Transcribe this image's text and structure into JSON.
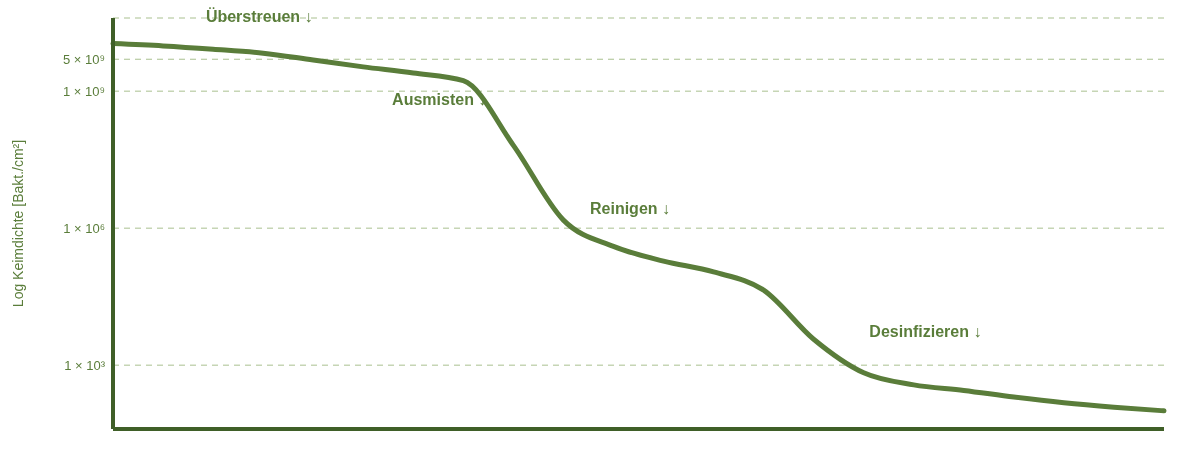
{
  "chart_data": {
    "type": "line",
    "ylabel": "Log Keimdichte [Bakt./cm²]",
    "categories": [
      null,
      null,
      null,
      null,
      null,
      null,
      null,
      null,
      null,
      null,
      null,
      null,
      null,
      null,
      null,
      null,
      null,
      null,
      null,
      null,
      null,
      null
    ],
    "series": [
      {
        "color": "#5a7d3a",
        "values": [
          11000000000,
          9800000000,
          8300000000,
          6800000000,
          4800000000,
          3400000000,
          2500000000,
          1700000000,
          65000000,
          1500000,
          400000,
          190000,
          110000,
          44000,
          3700,
          680,
          370,
          280,
          200,
          150,
          120,
          100
        ]
      }
    ],
    "log": true,
    "ylim": [
      40,
      40000000000
    ],
    "yticks": [
      {
        "value": 1000,
        "label": "1 × 10³"
      },
      {
        "value": 1000000,
        "label": "1 × 10⁶"
      },
      {
        "value": 1000000000,
        "label": "1 × 10⁹"
      },
      {
        "value": 5000000000,
        "label": "5 × 10⁹"
      }
    ],
    "grid": "y",
    "tick_labels": "y",
    "marker": "none",
    "line_style": "solid",
    "annotations": [
      "Überstreuen ↓",
      "Ausmisten ↓",
      "Reinigen ↓",
      "Desinfizieren ↓"
    ]
  }
}
